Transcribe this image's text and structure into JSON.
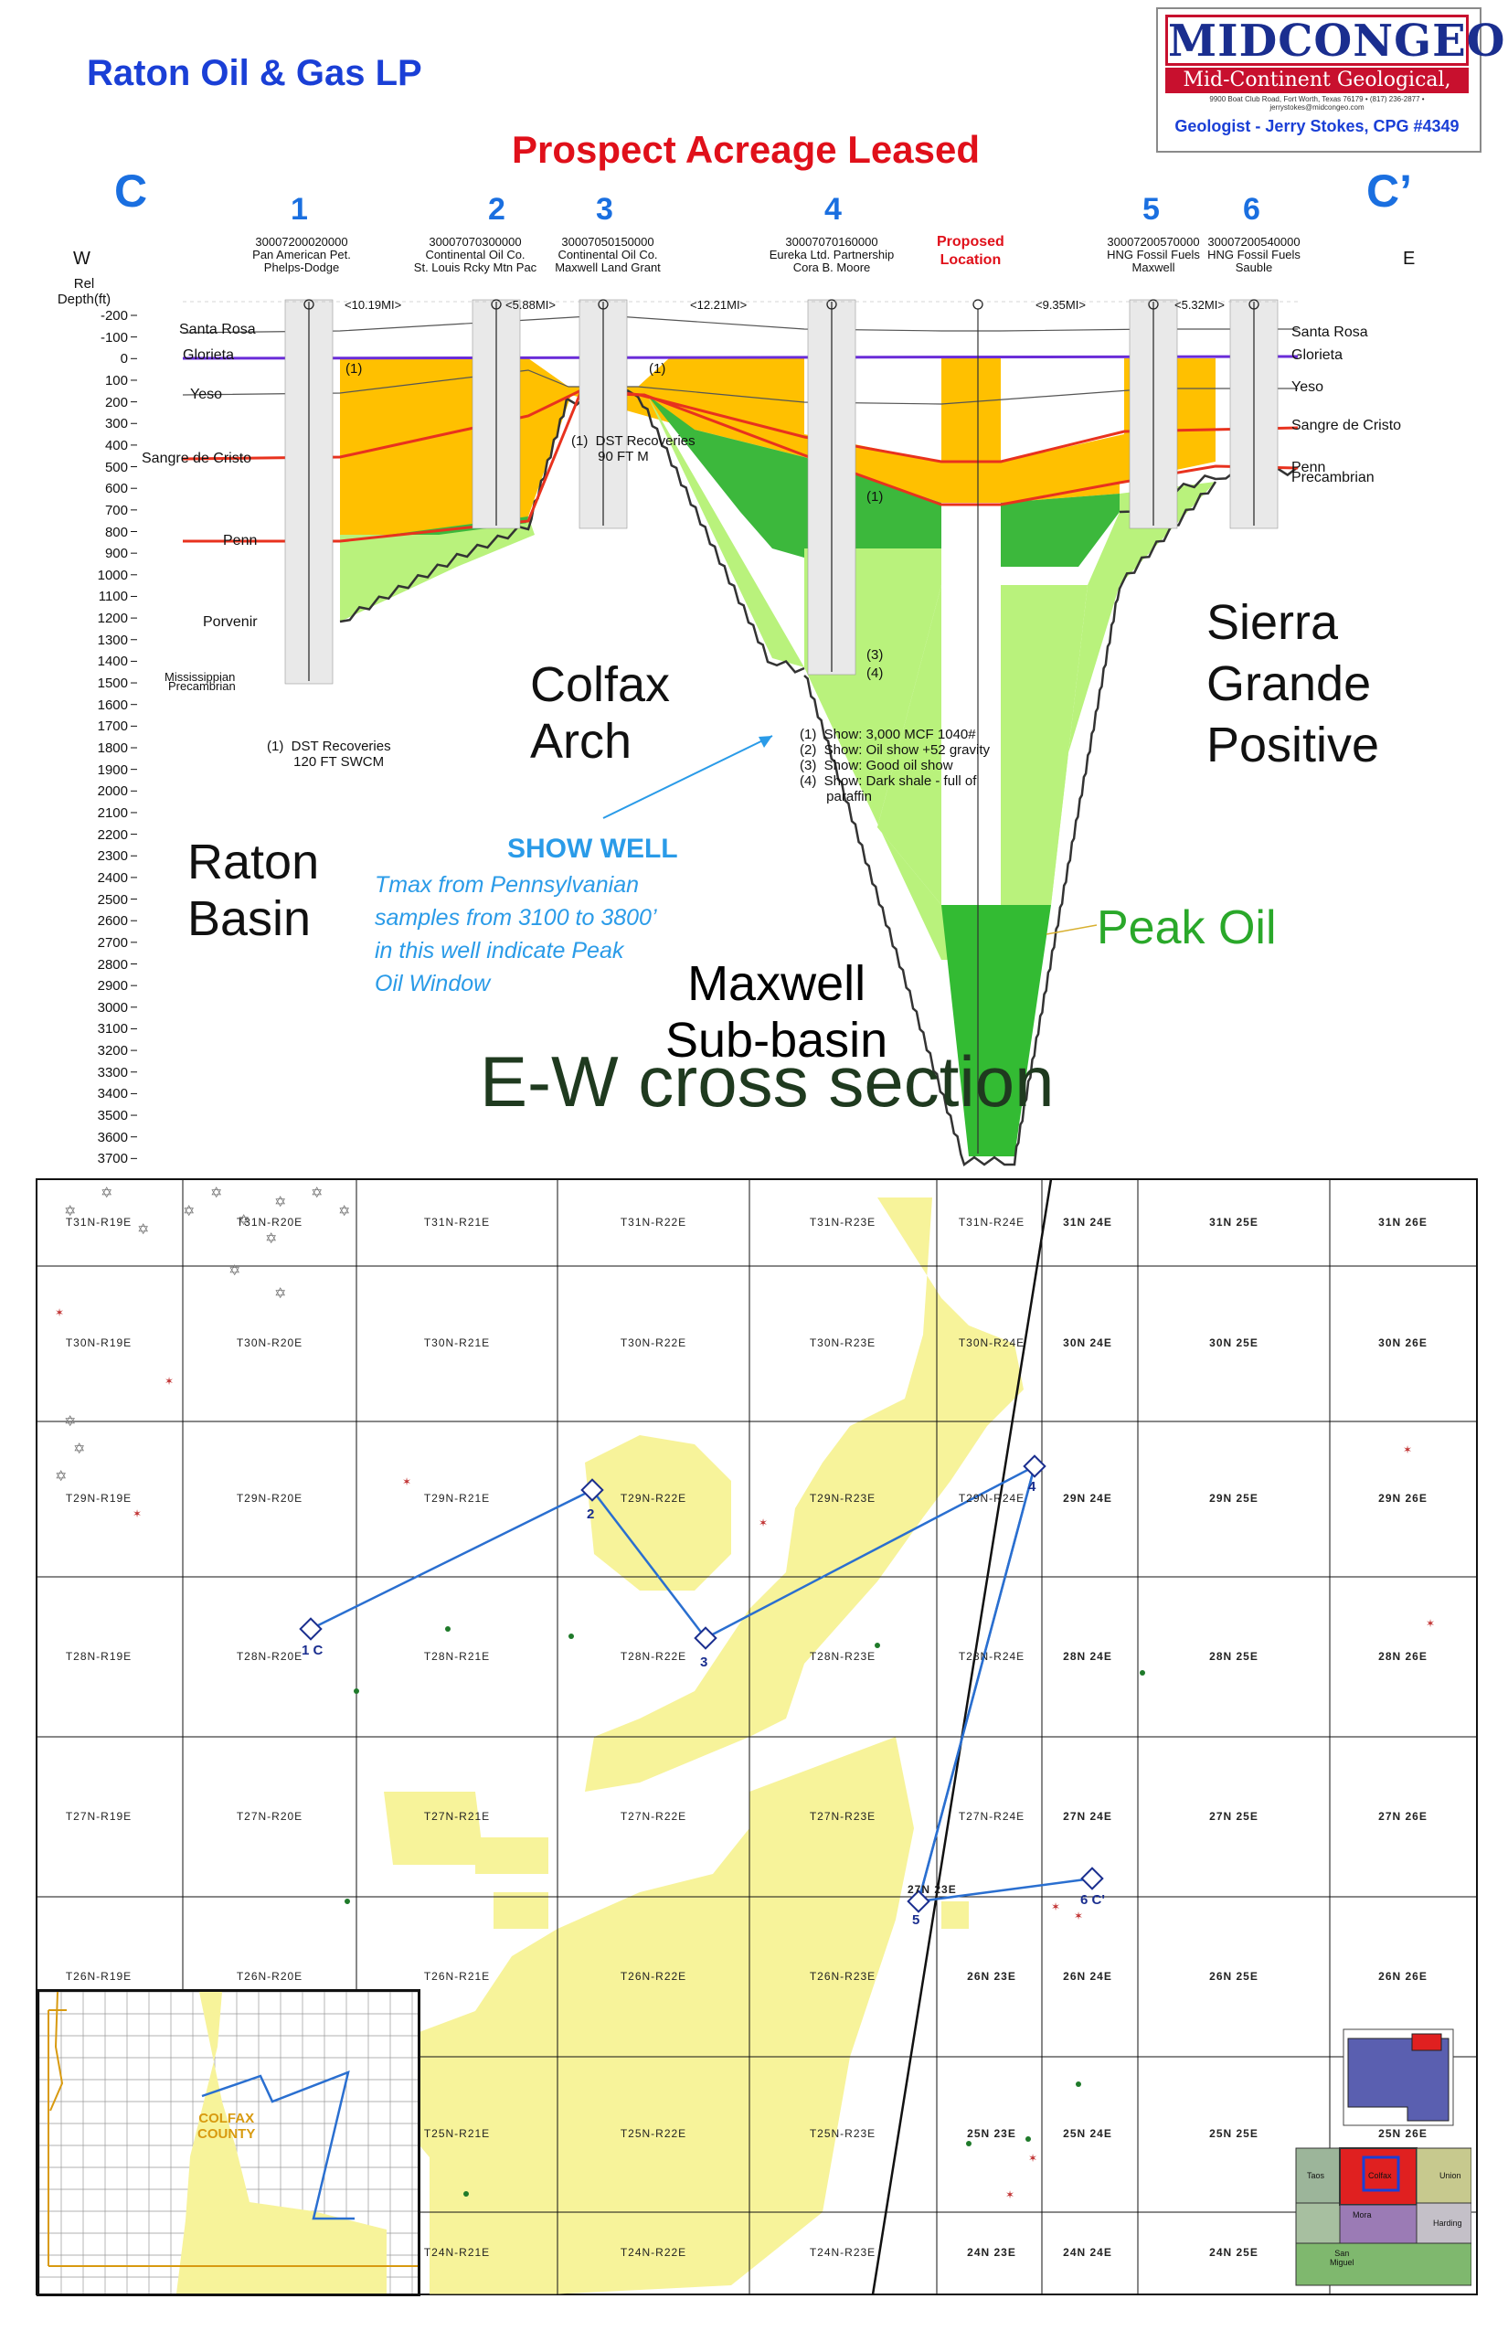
{
  "header": {
    "company": "Raton Oil & Gas LP",
    "prospect": "Prospect Acreage Leased",
    "logo_brand": "MIDCONGEO",
    "logo_sub": "Mid-Continent Geological, Inc.",
    "logo_address": "9900 Boat Club Road, Fort Worth, Texas 76179 • (817) 236-2877 • jerrystokes@midcongeo.com",
    "geologist": "Geologist - Jerry Stokes, CPG #4349"
  },
  "section": {
    "corner_left": "C",
    "corner_right": "C’",
    "dir_w": "W",
    "dir_e": "E",
    "depth_label": "Rel\nDepth(ft)",
    "wells": [
      {
        "num": "1",
        "api": "30007200020000",
        "op": "Pan American Pet.",
        "lease": "Phelps-Dodge"
      },
      {
        "num": "2",
        "api": "30007070300000",
        "op": "Continental Oil Co.",
        "lease": "St. Louis Rcky Mtn Pac"
      },
      {
        "num": "3",
        "api": "30007050150000",
        "op": "Continental Oil Co.",
        "lease": "Maxwell Land Grant"
      },
      {
        "num": "4",
        "api": "30007070160000",
        "op": "Eureka Ltd. Partnership",
        "lease": "Cora B. Moore"
      },
      {
        "num": "5",
        "api": "30007200570000",
        "op": "HNG Fossil Fuels",
        "lease": "Maxwell"
      },
      {
        "num": "6",
        "api": "30007200540000",
        "op": "HNG Fossil Fuels",
        "lease": "Sauble"
      }
    ],
    "proposed": "Proposed\nLocation",
    "distances": [
      "<10.19MI>",
      "<5.88MI>",
      "<12.21MI>",
      "<9.35MI>",
      "<5.32MI>"
    ],
    "depth_ticks": [
      "-200",
      "-100",
      "0",
      "100",
      "200",
      "300",
      "400",
      "500",
      "600",
      "700",
      "800",
      "900",
      "1000",
      "1100",
      "1200",
      "1300",
      "1400",
      "1500",
      "1600",
      "1700",
      "1800",
      "1900",
      "2000",
      "2100",
      "2200",
      "2300",
      "2400",
      "2500",
      "2600",
      "2700",
      "2800",
      "2900",
      "3000",
      "3100",
      "3200",
      "3300",
      "3400",
      "3500",
      "3600",
      "3700"
    ],
    "formations_left": [
      "Santa Rosa",
      "Glorieta",
      "Yeso",
      "Sangre de Cristo",
      "Penn",
      "Porvenir",
      "Mississippian",
      "Precambrian"
    ],
    "formations_right": [
      "Santa Rosa",
      "Glorieta",
      "Yeso",
      "Sangre de Cristo",
      "Penn",
      "Precambrian"
    ],
    "annotations": {
      "dst1": "(1)  DST Recoveries\n       90 FT M",
      "dst2": "(1)  DST Recoveries\n       120 FT SWCM",
      "show_notes": "(1)  Show: 3,000 MCF 1040#\n(2)  Show: Oil show +52 gravity\n(3)  Show: Good oil show\n(4)  Show: Dark shale - full of\n       paraffin",
      "marker1": "(1)",
      "marker3": "(3)",
      "marker4": "(4)",
      "show_well": "SHOW WELL",
      "tmax": "Tmax from Pennsylvanian\nsamples from 3100 to 3800’\nin this well indicate Peak\nOil Window",
      "peak_oil": "Peak Oil",
      "colfax": "Colfax\nArch",
      "raton": "Raton\nBasin",
      "sierra": "Sierra\nGrande\nPositive",
      "maxwell": "Maxwell\nSub-basin"
    },
    "title": "E-W cross section"
  },
  "map": {
    "rows": [
      [
        "T31N-R19E",
        "T31N-R20E",
        "T31N-R21E",
        "T31N-R22E",
        "T31N-R23E",
        "T31N-R24E",
        "31N 24E",
        "31N 25E",
        "31N 26E"
      ],
      [
        "T30N-R19E",
        "T30N-R20E",
        "T30N-R21E",
        "T30N-R22E",
        "T30N-R23E",
        "T30N-R24E",
        "30N 24E",
        "30N 25E",
        "30N 26E"
      ],
      [
        "T29N-R19E",
        "T29N-R20E",
        "T29N-R21E",
        "T29N-R22E",
        "T29N-R23E",
        "T29N-R24E",
        "29N 24E",
        "29N 25E",
        "29N 26E"
      ],
      [
        "T28N-R19E",
        "T28N-R20E",
        "T28N-R21E",
        "T28N-R22E",
        "T28N-R23E",
        "T28N-R24E",
        "28N 24E",
        "28N 25E",
        "28N 26E"
      ],
      [
        "T27N-R19E",
        "T27N-R20E",
        "T27N-R21E",
        "T27N-R22E",
        "T27N-R23E",
        "T27N-R24E",
        "27N 24E",
        "27N 25E",
        "27N 26E"
      ],
      [
        "T26N-R19E",
        "T26N-R20E",
        "T26N-R21E",
        "T26N-R22E",
        "T26N-R23E",
        "26N 23E",
        "26N 24E",
        "26N 25E",
        "26N 26E"
      ],
      [
        "",
        "",
        "T25N-R21E",
        "T25N-R22E",
        "T25N-R23E",
        "25N 23E",
        "25N 24E",
        "25N 25E",
        "25N 26E"
      ],
      [
        "",
        "",
        "T24N-R21E",
        "T24N-R22E",
        "T24N-R23E",
        "24N 23E",
        "24N 24E",
        "24N 25E",
        ""
      ]
    ],
    "well_labels": [
      "1 C",
      "2",
      "3",
      "4",
      "5",
      "6 C'"
    ],
    "twp_27n23e": "27N 23E",
    "inset_label": "COLFAX\nCOUNTY",
    "counties": [
      "Taos",
      "Colfax",
      "Union",
      "Mora",
      "Harding",
      "San\nMiguel"
    ]
  },
  "colors": {
    "orange": "#ffc000",
    "green": "#3cb83c",
    "lightgreen": "#b9f27c",
    "red": "#e8321e",
    "blue": "#1a6fe0",
    "yellow": "#f7f39a"
  }
}
